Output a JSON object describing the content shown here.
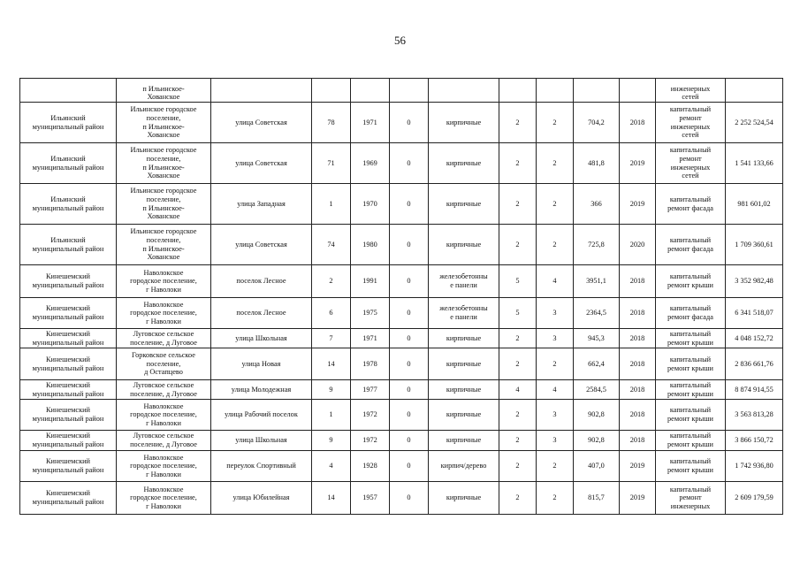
{
  "page_number": "56",
  "table": {
    "rows": [
      [
        "",
        "п  Ильинское-\nХованское",
        "",
        "",
        "",
        "",
        "",
        "",
        "",
        "",
        "",
        "инженерных\nсетей",
        ""
      ],
      [
        "Ильинский\nмуниципальный район",
        "Ильинское городское\nпоселение,\nп  Ильинское-\nХованское",
        "улица Советская",
        "78",
        "1971",
        "0",
        "кирпичные",
        "2",
        "2",
        "704,2",
        "2018",
        "капитальный\nремонт\nинженерных\nсетей",
        "2 252 524,54"
      ],
      [
        "Ильинский\nмуниципальный район",
        "Ильинское городское\nпоселение,\nп  Ильинское-\nХованское",
        "улица Советская",
        "71",
        "1969",
        "0",
        "кирпичные",
        "2",
        "2",
        "481,8",
        "2019",
        "капитальный\nремонт\nинженерных\nсетей",
        "1 541 133,66"
      ],
      [
        "Ильинский\nмуниципальный район",
        "Ильинское городское\nпоселение,\nп  Ильинское-\nХованское",
        "улица Западная",
        "1",
        "1970",
        "0",
        "кирпичные",
        "2",
        "2",
        "366",
        "2019",
        "капитальный\nремонт фасада",
        "981 601,02"
      ],
      [
        "Ильинский\nмуниципальный район",
        "Ильинское городское\nпоселение,\nп  Ильинское-\nХованское",
        "улица Советская",
        "74",
        "1980",
        "0",
        "кирпичные",
        "2",
        "2",
        "725,8",
        "2020",
        "капитальный\nремонт фасада",
        "1 709 360,61"
      ],
      [
        "Кинешемский\nмуниципальный район",
        "Наволокское\nгородское поселение,\nг  Наволоки",
        "поселок Лесное",
        "2",
        "1991",
        "0",
        "железобетонны\nе панели",
        "5",
        "4",
        "3951,1",
        "2018",
        "капитальный\nремонт крыши",
        "3 352 982,48"
      ],
      [
        "Кинешемский\nмуниципальный район",
        "Наволокское\nгородское поселение,\nг  Наволоки",
        "поселок Лесное",
        "6",
        "1975",
        "0",
        "железобетонны\nе панели",
        "5",
        "3",
        "2364,5",
        "2018",
        "капитальный\nремонт фасада",
        "6 341 518,07"
      ],
      [
        "Кинешемский\nмуниципальный район",
        "Луговское сельское\nпоселение, д  Луговое",
        "улица Школьная",
        "7",
        "1971",
        "0",
        "кирпичные",
        "2",
        "3",
        "945,3",
        "2018",
        "капитальный\nремонт крыши",
        "4 048 152,72"
      ],
      [
        "Кинешемский\nмуниципальный район",
        "Горковское сельское\nпоселение,\nд  Остапцево",
        "улица Новая",
        "14",
        "1978",
        "0",
        "кирпичные",
        "2",
        "2",
        "662,4",
        "2018",
        "капитальный\nремонт крыши",
        "2 836 661,76"
      ],
      [
        "Кинешемский\nмуниципальный район",
        "Луговское сельское\nпоселение, д  Луговое",
        "улица Молодежная",
        "9",
        "1977",
        "0",
        "кирпичные",
        "4",
        "4",
        "2584,5",
        "2018",
        "капитальный\nремонт крыши",
        "8 874 914,55"
      ],
      [
        "Кинешемский\nмуниципальный район",
        "Наволокское\nгородское поселение,\nг  Наволоки",
        "улица Рабочий поселок",
        "1",
        "1972",
        "0",
        "кирпичные",
        "2",
        "3",
        "902,8",
        "2018",
        "капитальный\nремонт крыши",
        "3 563 813,28"
      ],
      [
        "Кинешемский\nмуниципальный район",
        "Луговское сельское\nпоселение, д  Луговое",
        "улица Школьная",
        "9",
        "1972",
        "0",
        "кирпичные",
        "2",
        "3",
        "902,8",
        "2018",
        "капитальный\nремонт крыши",
        "3 866 150,72"
      ],
      [
        "Кинешемский\nмуниципальный район",
        "Наволокское\nгородское поселение,\nг  Наволоки",
        "переулок Спортивный",
        "4",
        "1928",
        "0",
        "кирпич/дерево",
        "2",
        "2",
        "407,0",
        "2019",
        "капитальный\nремонт крыши",
        "1 742 936,80"
      ],
      [
        "Кинешемский\nмуниципальный район",
        "Наволокское\nгородское поселение,\nг  Наволоки",
        "улица Юбилейная",
        "14",
        "1957",
        "0",
        "кирпичные",
        "2",
        "2",
        "815,7",
        "2019",
        "капитальный\nремонт\nинженерных",
        "2 609 179,59"
      ]
    ]
  }
}
